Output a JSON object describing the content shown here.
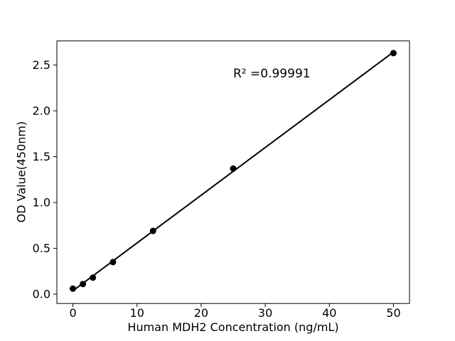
{
  "chart_data": {
    "type": "scatter",
    "xlabel": "Human MDH2 Concentration (ng/mL)",
    "ylabel": "OD Value(450nm)",
    "x": [
      0,
      1.56,
      3.12,
      6.25,
      12.5,
      25,
      50
    ],
    "y": [
      0.06,
      0.11,
      0.18,
      0.35,
      0.69,
      1.37,
      2.63
    ],
    "fit": {
      "slope": 0.0521,
      "intercept": 0.037
    },
    "annotation": {
      "text": "R² =0.99991",
      "x": 25,
      "y": 2.4
    },
    "xticks": [
      0,
      10,
      20,
      30,
      40,
      50
    ],
    "yticks": [
      "0.0",
      "0.5",
      "1.0",
      "1.5",
      "2.0",
      "2.5"
    ],
    "xlim": [
      -2.5,
      52.5
    ],
    "ylim": [
      -0.102,
      2.763
    ],
    "grid": false,
    "colors": {
      "marker": "#000000",
      "line": "#000000",
      "axis": "#000000",
      "text": "#000000",
      "background": "#ffffff"
    }
  }
}
